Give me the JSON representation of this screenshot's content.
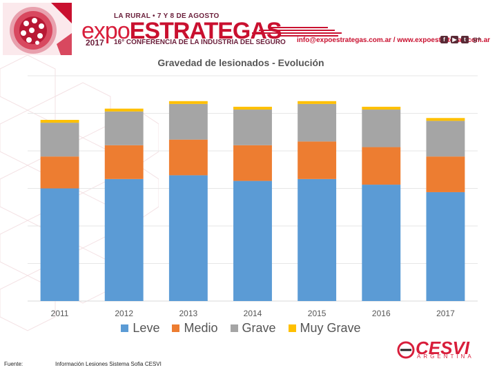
{
  "header": {
    "event_dates": "LA RURAL • 7 Y 8 DE AGOSTO",
    "brand_expo": "expo",
    "brand_estrategas": "ESTRATEGAS",
    "year": "2017",
    "conference": "16° CONFERENCIA DE LA INDUSTRIA DEL SEGURO",
    "contact": "info@expoestrategas.com.ar / www.expoestrategas.com.ar",
    "social_icons": [
      "facebook-icon",
      "youtube-icon",
      "twitter-icon",
      "google-plus-icon"
    ],
    "google_plus_label": "g+"
  },
  "chart_data": {
    "type": "bar",
    "stacked": true,
    "title": "Gravedad de lesionados - Evolución",
    "categories": [
      "2011",
      "2012",
      "2013",
      "2014",
      "2015",
      "2016",
      "2017"
    ],
    "series": [
      {
        "name": "Leve",
        "color": "#5b9bd5",
        "values": [
          60,
          65,
          67,
          64,
          65,
          62,
          58
        ]
      },
      {
        "name": "Medio",
        "color": "#ed7d31",
        "values": [
          17,
          18,
          19,
          19,
          20,
          20,
          19
        ]
      },
      {
        "name": "Grave",
        "color": "#a5a5a5",
        "values": [
          18,
          18,
          19,
          19,
          20,
          20,
          19
        ]
      },
      {
        "name": "Muy Grave",
        "color": "#ffc000",
        "values": [
          1.5,
          1.5,
          1.5,
          1.5,
          1.5,
          1.5,
          1.5
        ]
      }
    ],
    "ylim": [
      0,
      120
    ],
    "grid": true,
    "xlabel": "",
    "ylabel": "",
    "legend_position": "bottom"
  },
  "footer": {
    "source_label": "Fuente:",
    "source_text": "Información Lesiones Sistema Sofia CESVI"
  },
  "sponsor": {
    "name": "CESVI",
    "subtitle": "ARGENTINA",
    "color": "#d81e3b"
  },
  "colors": {
    "brand_red": "#c9102f",
    "brand_dark": "#6a1e3a"
  }
}
